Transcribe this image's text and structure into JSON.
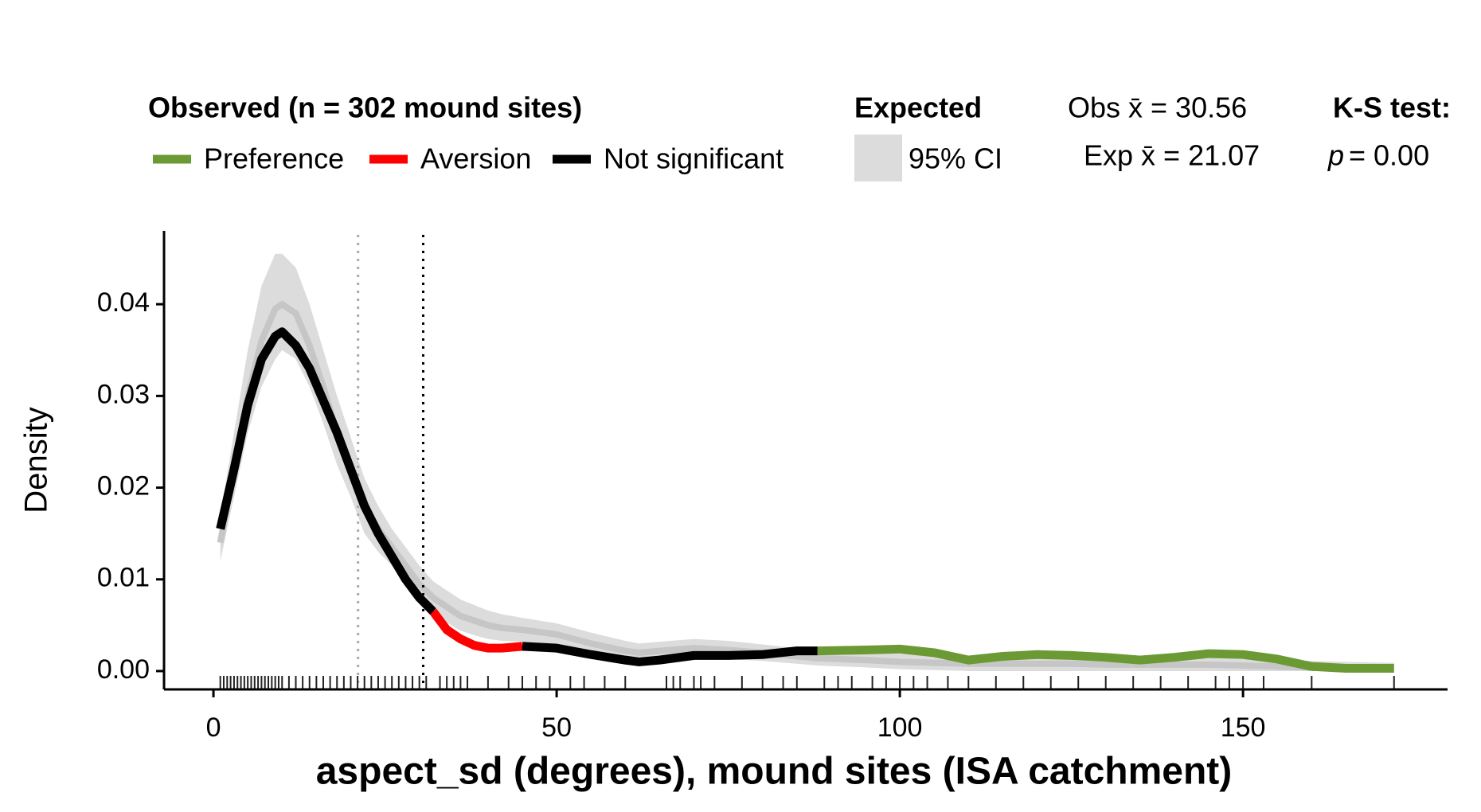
{
  "chart_data": {
    "type": "density",
    "x_label": "aspect_sd (degrees), mound sites (ISA catchment)",
    "y_label": "Density",
    "xlim": [
      -7.2,
      179.8
    ],
    "ylim": [
      -0.002,
      0.048
    ],
    "xticks": [
      0,
      50,
      100,
      150
    ],
    "yticks": [
      {
        "value": 0,
        "label": "0.00"
      },
      {
        "value": 0.01,
        "label": "0.01"
      },
      {
        "value": 0.02,
        "label": "0.02"
      },
      {
        "value": 0.03,
        "label": "0.03"
      },
      {
        "value": 0.04,
        "label": "0.04"
      }
    ],
    "legend_title": "Observed (n = 302 mound sites)",
    "x": [
      1,
      3,
      5,
      7,
      9,
      10,
      12,
      14,
      16,
      18,
      20,
      22,
      24,
      26,
      28,
      30,
      32,
      34,
      36,
      38,
      40,
      42,
      45,
      50,
      55,
      60,
      62,
      65,
      70,
      75,
      80,
      85,
      88,
      95,
      100,
      105,
      110,
      115,
      120,
      125,
      130,
      135,
      140,
      145,
      150,
      155,
      160,
      165,
      172
    ],
    "series": [
      {
        "name": "Preference",
        "color": "#6b9a35",
        "values": [
          null,
          null,
          null,
          null,
          null,
          null,
          null,
          null,
          null,
          null,
          null,
          null,
          null,
          null,
          null,
          null,
          null,
          null,
          null,
          null,
          null,
          null,
          null,
          null,
          null,
          null,
          null,
          null,
          null,
          null,
          null,
          null,
          0.0022,
          0.0023,
          0.0024,
          0.002,
          0.0012,
          0.0016,
          0.0018,
          0.0017,
          0.0015,
          0.0012,
          0.0015,
          0.0019,
          0.0018,
          0.0013,
          0.0005,
          0.0003,
          0.0003
        ]
      },
      {
        "name": "Aversion",
        "color": "#ff0000",
        "values": [
          null,
          null,
          null,
          null,
          null,
          null,
          null,
          null,
          null,
          null,
          null,
          null,
          null,
          null,
          null,
          null,
          0.0065,
          0.0045,
          0.0035,
          0.0028,
          0.0025,
          0.0025,
          0.0027,
          null,
          null,
          null,
          null,
          null,
          null,
          null,
          null,
          null,
          null,
          null,
          null,
          null,
          null,
          null,
          null,
          null,
          null,
          null,
          null,
          null,
          null,
          null,
          null,
          null,
          null
        ]
      },
      {
        "name": "Not significant",
        "color": "#000000",
        "values": [
          0.0155,
          0.022,
          0.029,
          0.034,
          0.0365,
          0.037,
          0.0355,
          0.033,
          0.0295,
          0.026,
          0.022,
          0.018,
          0.015,
          0.0125,
          0.01,
          0.008,
          0.0065,
          null,
          null,
          null,
          null,
          null,
          0.0027,
          0.0025,
          0.0018,
          0.0012,
          0.001,
          0.0012,
          0.0017,
          0.0017,
          0.0018,
          0.0022,
          0.0022,
          null,
          null,
          null,
          null,
          null,
          null,
          null,
          null,
          null,
          null,
          null,
          null,
          null,
          null,
          null,
          null
        ]
      }
    ],
    "expected": {
      "title": "Expected",
      "name": "95% CI",
      "color": "#dcdcdc",
      "mean_color": "#c6c6c6",
      "mean": [
        0.014,
        0.022,
        0.03,
        0.036,
        0.0395,
        0.04,
        0.039,
        0.0355,
        0.031,
        0.026,
        0.022,
        0.018,
        0.0155,
        0.0135,
        0.0115,
        0.0095,
        0.008,
        0.007,
        0.006,
        0.0055,
        0.005,
        0.0047,
        0.0045,
        0.004,
        0.003,
        0.0022,
        0.002,
        0.0022,
        0.0025,
        0.0023,
        0.002,
        0.0016,
        0.0014,
        0.0012,
        0.001,
        0.0009,
        0.0008,
        0.0008,
        0.0008,
        0.0008,
        0.0007,
        0.0007,
        0.0007,
        0.0007,
        0.0006,
        0.0005,
        0.0004,
        0.0003,
        0.0002
      ],
      "lower": [
        0.012,
        0.019,
        0.026,
        0.031,
        0.034,
        0.035,
        0.034,
        0.031,
        0.027,
        0.0225,
        0.019,
        0.015,
        0.013,
        0.0115,
        0.0096,
        0.0077,
        0.0063,
        0.0053,
        0.0044,
        0.0039,
        0.0035,
        0.0033,
        0.0032,
        0.0028,
        0.0019,
        0.0012,
        0.001,
        0.0012,
        0.0015,
        0.0013,
        0.0011,
        0.0008,
        0.0006,
        0.0004,
        0.0002,
        0.0001,
        0,
        0,
        0,
        0,
        0,
        0,
        0,
        0,
        0,
        0,
        0,
        0,
        0
      ],
      "upper": [
        0.017,
        0.026,
        0.035,
        0.042,
        0.0455,
        0.0455,
        0.044,
        0.04,
        0.035,
        0.03,
        0.0255,
        0.021,
        0.018,
        0.0155,
        0.0135,
        0.0115,
        0.0098,
        0.0088,
        0.0078,
        0.0072,
        0.0066,
        0.0062,
        0.0058,
        0.0052,
        0.0042,
        0.0033,
        0.003,
        0.0032,
        0.0035,
        0.0033,
        0.0029,
        0.0025,
        0.0023,
        0.0021,
        0.0019,
        0.0017,
        0.0016,
        0.0015,
        0.0015,
        0.0015,
        0.0014,
        0.0014,
        0.0014,
        0.0014,
        0.0013,
        0.0012,
        0.0011,
        0.001,
        0.0009
      ]
    },
    "obs_mean": {
      "value": 30.56,
      "label": "Obs x̄ = 30.56",
      "color": "#000000"
    },
    "exp_mean": {
      "value": 21.07,
      "label": "Exp x̄ = 21.07",
      "color": "#aaaaaa"
    },
    "ks_test": {
      "title": "K-S test:",
      "symbol": "p",
      "text": "= 0.00"
    },
    "rug": [
      1,
      1.5,
      2,
      2.5,
      3,
      3.5,
      4,
      4.5,
      5,
      5.5,
      6,
      6.5,
      7,
      7.5,
      8,
      8.5,
      9,
      9.5,
      10,
      11,
      12,
      13,
      14,
      15,
      16,
      17,
      18,
      19,
      20,
      21,
      22,
      23,
      24,
      25,
      26,
      27,
      28,
      29,
      30,
      31,
      33,
      34,
      35,
      36,
      37,
      40,
      43,
      45,
      47,
      49,
      52,
      54,
      57,
      60,
      66,
      67,
      68,
      70,
      71,
      73,
      77,
      80,
      83,
      85,
      89,
      91,
      93,
      96,
      98,
      100,
      102,
      104,
      107,
      110,
      114,
      118,
      122,
      126,
      130,
      134,
      138,
      142,
      146,
      148,
      150,
      153,
      160,
      172
    ]
  }
}
